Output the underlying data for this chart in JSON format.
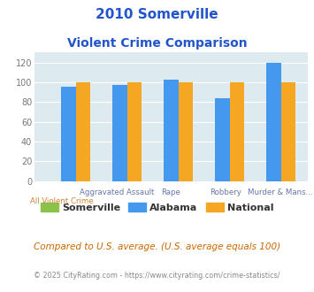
{
  "title_line1": "2010 Somerville",
  "title_line2": "Violent Crime Comparison",
  "categories": [
    "All Violent Crime",
    "Aggravated Assault",
    "Rape",
    "Robbery",
    "Murder & Mans..."
  ],
  "somerville": [
    0,
    0,
    0,
    0,
    0
  ],
  "alabama": [
    95,
    97,
    103,
    84,
    120
  ],
  "national": [
    100,
    100,
    100,
    100,
    100
  ],
  "color_somerville": "#8bc34a",
  "color_alabama": "#4499ee",
  "color_national": "#f5a623",
  "bg_color": "#ddeaf0",
  "ylim": [
    0,
    130
  ],
  "yticks": [
    0,
    20,
    40,
    60,
    80,
    100,
    120
  ],
  "top_labels": [
    "",
    "Aggravated Assault",
    "Rape",
    "Robbery",
    "Murder & Mans..."
  ],
  "bottom_labels": [
    "All Violent Crime",
    "",
    "",
    "",
    ""
  ],
  "footer1": "Compared to U.S. average. (U.S. average equals 100)",
  "footer2": "© 2025 CityRating.com - https://www.cityrating.com/crime-statistics/",
  "legend_labels": [
    "Somerville",
    "Alabama",
    "National"
  ],
  "title_color": "#2255cc",
  "top_label_color": "#6677aa",
  "bottom_label_color": "#cc8833",
  "footer1_color": "#cc6600",
  "footer2_color": "#888888",
  "grid_color": "white",
  "ytick_color": "#777777"
}
